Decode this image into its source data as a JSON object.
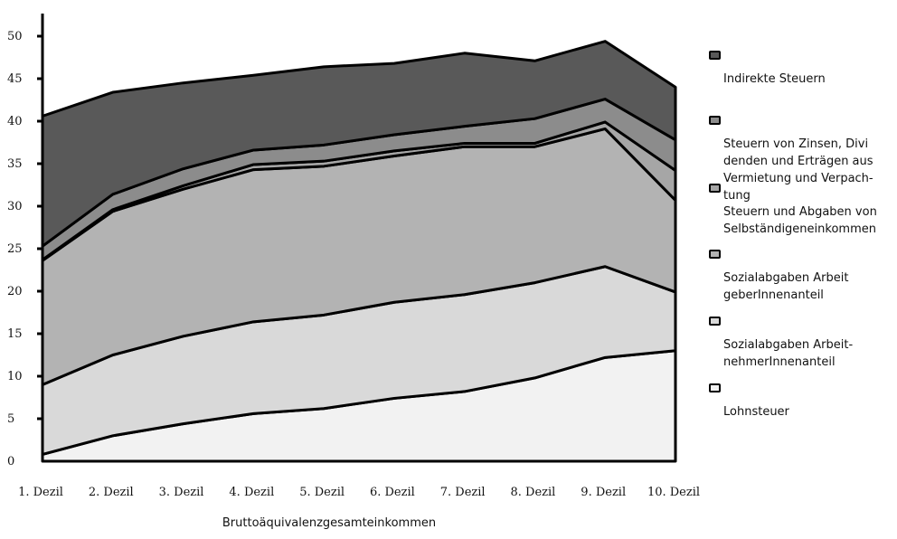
{
  "chart_data": {
    "type": "area",
    "stacked": true,
    "categories": [
      "1. Dezil",
      "2. Dezil",
      "3. Dezil",
      "4. Dezil",
      "5. Dezil",
      "6. Dezil",
      "7. Dezil",
      "8. Dezil",
      "9. Dezil",
      "10. Dezil"
    ],
    "xlabel": "Bruttoäquivalenzgesamteinkommen",
    "ylabel": "",
    "ylim": [
      0,
      50
    ],
    "yticks": [
      0,
      5,
      10,
      15,
      20,
      25,
      30,
      35,
      40,
      45,
      50
    ],
    "grid": false,
    "legend_position": "right",
    "series": [
      {
        "name": "Lohnsteuer",
        "color": "#f2f2f2",
        "values": [
          0.8,
          3.0,
          4.4,
          5.6,
          6.2,
          7.4,
          8.2,
          9.8,
          12.2,
          13.0
        ]
      },
      {
        "name": "Sozialabgaben Arbeit-nehmerInnenanteil",
        "color": "#d9d9d9",
        "values": [
          8.2,
          9.5,
          10.3,
          10.8,
          11.0,
          11.3,
          11.4,
          11.2,
          10.7,
          6.9
        ]
      },
      {
        "name": "Sozialabgaben Arbeit geberInnenanteil",
        "color": "#b3b3b3",
        "values": [
          14.6,
          16.9,
          17.3,
          17.9,
          17.5,
          17.2,
          17.4,
          16.0,
          16.2,
          10.8
        ]
      },
      {
        "name": "Steuern und Abgaben von Selbständigeneinkommen",
        "color": "#a6a6a6",
        "values": [
          0.1,
          0.2,
          0.4,
          0.6,
          0.6,
          0.6,
          0.4,
          0.4,
          0.8,
          3.5
        ]
      },
      {
        "name": "Steuern von Zinsen, Divi denden und Erträgen aus Vermietung und Verpach-tung",
        "color": "#8c8c8c",
        "values": [
          1.6,
          1.8,
          2.0,
          1.7,
          1.9,
          1.9,
          2.0,
          2.9,
          2.7,
          3.6
        ]
      },
      {
        "name": "Indirekte Steuern",
        "color": "#595959",
        "values": [
          15.3,
          12.0,
          10.1,
          8.8,
          9.2,
          8.4,
          8.6,
          6.8,
          6.8,
          6.2
        ]
      }
    ]
  },
  "legend": [
    {
      "lines": [
        "Indirekte Steuern"
      ]
    },
    {
      "lines": [
        "Steuern von Zinsen, Divi",
        "denden und Erträgen aus",
        "Vermietung und Verpach-",
        "tung"
      ]
    },
    {
      "lines": [
        "Steuern und Abgaben von",
        "Selbständigeneinkommen"
      ]
    },
    {
      "lines": [
        "Sozialabgaben Arbeit",
        "geberInnenanteil"
      ]
    },
    {
      "lines": [
        "Sozialabgaben Arbeit-",
        "nehmerInnenanteil"
      ]
    },
    {
      "lines": [
        "Lohnsteuer"
      ]
    }
  ]
}
